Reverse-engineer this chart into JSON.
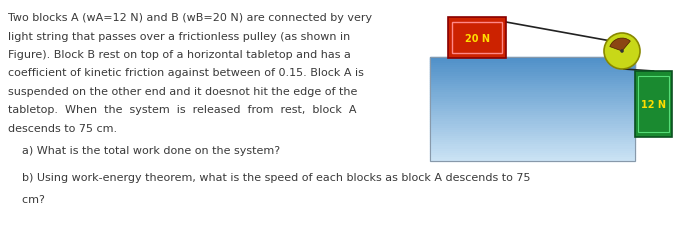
{
  "fig_width": 6.77,
  "fig_height": 2.3,
  "dpi": 100,
  "bg_color": "#ffffff",
  "text_color": "#3a3a3a",
  "line1": "Two blocks A (w",
  "line1b": "A",
  "line1c": "=12 N) and B (w",
  "line1d": "B",
  "line1e": "=20 N) are connected by very",
  "para_lines": [
    "Two blocks A (wA=12 N) and B (wB=20 N) are connected by very",
    "light string that passes over a frictionless pulley (as shown in",
    "Figure). Block B rest on top of a horizontal tabletop and has a",
    "coefficient of kinetic friction against between of 0.15. Block A is",
    "suspended on the other end and it doesnot hit the edge of the",
    "tabletop.  When  the  system  is  released  from  rest,  block  A",
    "descends to 75 cm."
  ],
  "question_a": "    a) What is the total work done on the system?",
  "question_b": "    b) Using work-energy theorem, what is the speed of each blocks as block A descends to 75",
  "question_b2": "    cm?",
  "body_fontsize": 8.0,
  "question_fontsize": 8.0,
  "table_color_top": "#4f90c8",
  "table_color_bot": "#cde4f5",
  "block_B_color": "#cc2200",
  "block_B_label": "20 N",
  "block_A_color": "#1a8a30",
  "block_A_label": "12 N",
  "pulley_color": "#c8d818",
  "pulley_outline": "#888800",
  "wedge_color": "#8B4513",
  "string_color": "#222222",
  "label_color": "#ffdd00",
  "label_fontsize": 7.0
}
